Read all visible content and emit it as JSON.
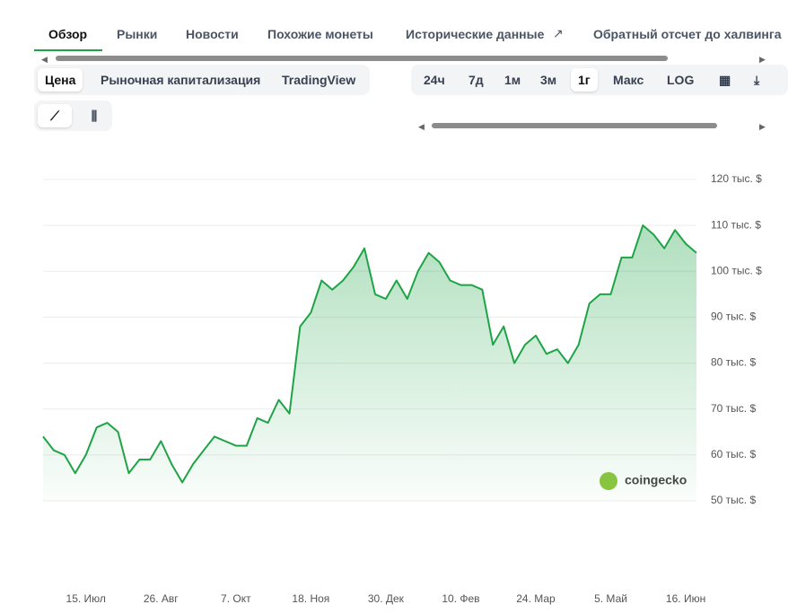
{
  "tabs": [
    "Обзор",
    "Рынки",
    "Новости",
    "Похожие монеты",
    "Исторические данные",
    "Обратный отсчет до халвинга"
  ],
  "view_tabs": [
    "Цена",
    "Рыночная капитализация",
    "TradingView"
  ],
  "ranges": [
    "24ч",
    "7д",
    "1м",
    "3м",
    "1г",
    "Макс",
    "LOG"
  ],
  "watermark": "coingecko",
  "chart_data": {
    "type": "area",
    "color": "#1ea446",
    "categories": [
      null,
      null,
      null,
      null,
      "15. Июл",
      null,
      null,
      null,
      null,
      null,
      null,
      "26. Авг",
      null,
      null,
      null,
      null,
      null,
      null,
      "7. Окт",
      null,
      null,
      null,
      null,
      null,
      null,
      "18. Ноя",
      null,
      null,
      null,
      null,
      null,
      null,
      "30. Дек",
      null,
      null,
      null,
      null,
      null,
      null,
      "10. Фев",
      null,
      null,
      null,
      null,
      null,
      null,
      "24. Мар",
      null,
      null,
      null,
      null,
      null,
      null,
      "5. Май",
      null,
      null,
      null,
      null,
      null,
      null,
      "16. Июн",
      null
    ],
    "values": [
      64,
      61,
      60,
      56,
      60,
      66,
      67,
      65,
      56,
      59,
      59,
      63,
      58,
      54,
      58,
      61,
      64,
      63,
      62,
      62,
      68,
      67,
      72,
      69,
      88,
      91,
      98,
      96,
      98,
      101,
      105,
      95,
      94,
      98,
      94,
      100,
      104,
      102,
      98,
      97,
      97,
      96,
      84,
      88,
      80,
      84,
      86,
      82,
      83,
      80,
      84,
      93,
      95,
      95,
      103,
      103,
      110,
      108,
      105,
      109,
      106,
      104
    ],
    "ylim": [
      50,
      120
    ],
    "yticks": [
      {
        "value": 120,
        "label": "120 тыс. $"
      },
      {
        "value": 110,
        "label": "110 тыс. $"
      },
      {
        "value": 100,
        "label": "100 тыс. $"
      },
      {
        "value": 90,
        "label": "90 тыс. $"
      },
      {
        "value": 80,
        "label": "80 тыс. $"
      },
      {
        "value": 70,
        "label": "70 тыс. $"
      },
      {
        "value": 60,
        "label": "60 тыс. $"
      },
      {
        "value": 50,
        "label": "50 тыс. $"
      }
    ],
    "grid": true
  }
}
